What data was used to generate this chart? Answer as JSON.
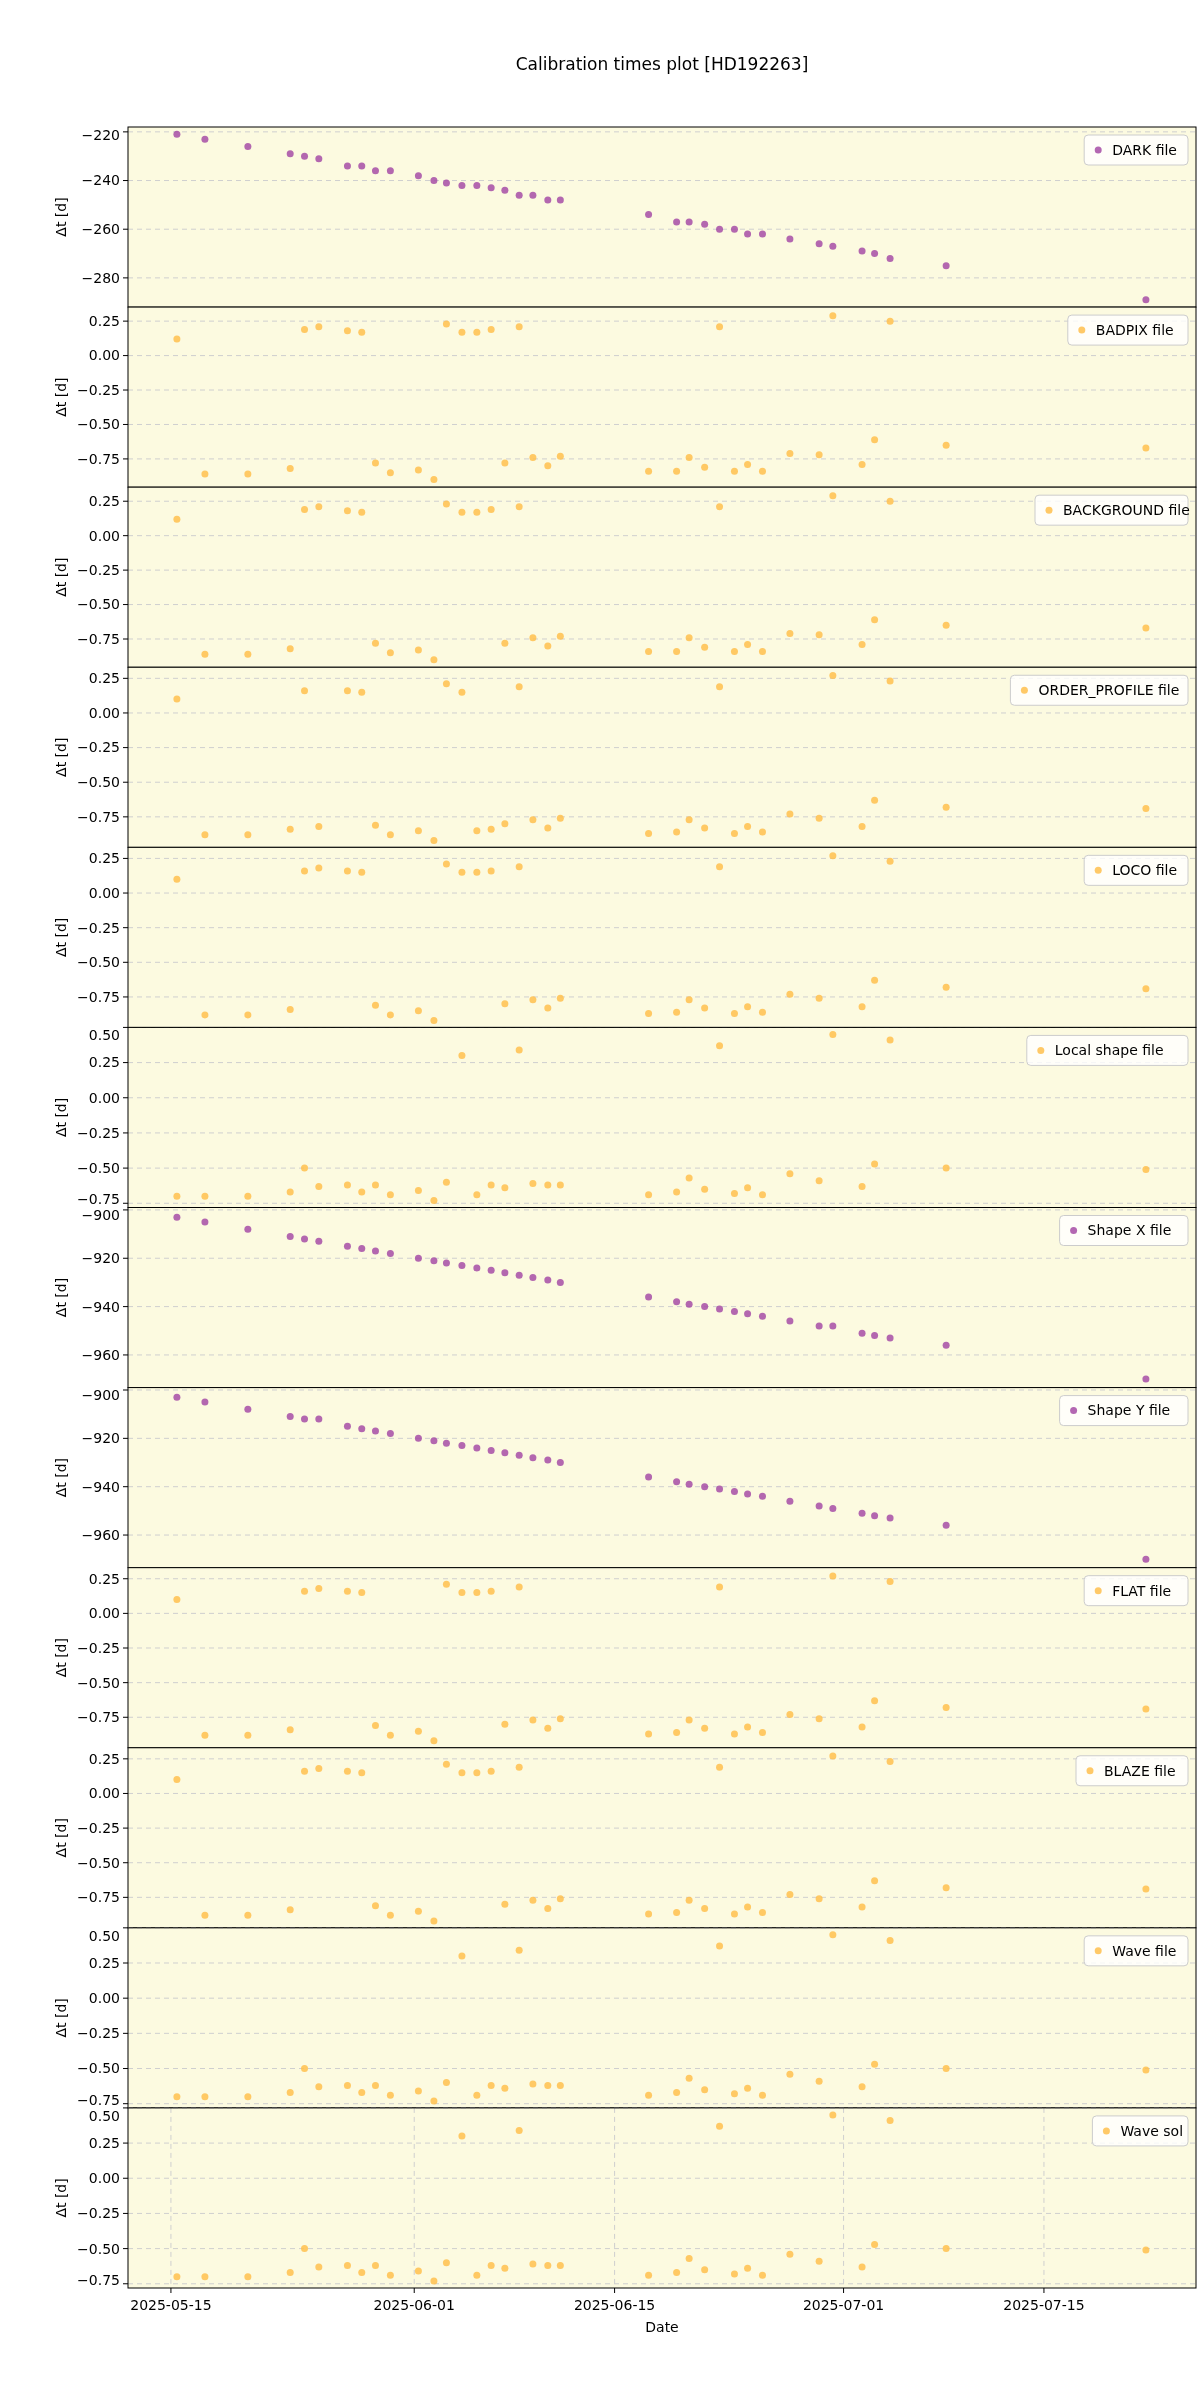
{
  "chart_data": [
    {
      "type": "scatter",
      "title": "Calibration times plot [HD192263]",
      "ylabel": "Δt [d]",
      "grid": true,
      "legend": "top right",
      "marker": "circle",
      "tick_labels": "y",
      "x": [
        "2025-05-15T10:00",
        "2025-05-17T09:00",
        "2025-05-20T09:00",
        "2025-05-23T08:00",
        "2025-05-24T08:00",
        "2025-05-25T08:00",
        "2025-05-27T08:00",
        "2025-05-28T08:00",
        "2025-05-29T07:00",
        "2025-05-30T08:00",
        "2025-06-01T07:00",
        "2025-06-02T09:00",
        "2025-06-03T06:00",
        "2025-06-04T08:00",
        "2025-06-05T09:00",
        "2025-06-06T09:00",
        "2025-06-07T08:00",
        "2025-06-08T08:00",
        "2025-06-09T07:00",
        "2025-06-10T08:00",
        "2025-06-11T05:00",
        "2025-06-17T09:00",
        "2025-06-19T08:00",
        "2025-06-20T05:00",
        "2025-06-21T07:00",
        "2025-06-22T08:00",
        "2025-06-23T09:00",
        "2025-06-24T07:00",
        "2025-06-25T08:00",
        "2025-06-27T06:00",
        "2025-06-29T07:00",
        "2025-06-30T06:00",
        "2025-07-02T07:00",
        "2025-07-03T04:00",
        "2025-07-04T06:00",
        "2025-07-08T04:00",
        "2025-07-22T03:00"
      ],
      "xlim": [
        "2025-05-12",
        "2025-07-25T15:00"
      ],
      "ylim": [
        -292,
        -218
      ],
      "yticks": [
        {
          "value": -280,
          "label": "−280"
        },
        {
          "value": -260,
          "label": "−260"
        },
        {
          "value": -240,
          "label": "−240"
        },
        {
          "value": -220,
          "label": "−220"
        }
      ],
      "series": [
        {
          "name": "DARK file",
          "color": "#a64ca6",
          "values": [
            -221,
            -223,
            -226,
            -229,
            -230,
            -231,
            -234,
            -234,
            -236,
            -236,
            -238,
            -240,
            -241,
            -242,
            -242,
            -243,
            -244,
            -246,
            -246,
            -248,
            -248,
            -254,
            -257,
            -257,
            -258,
            -260,
            -260,
            -262,
            -262,
            -264,
            -266,
            -267,
            -269,
            -270,
            -272,
            -275,
            -289
          ]
        }
      ]
    },
    {
      "type": "scatter",
      "ylabel": "Δt [d]",
      "grid": true,
      "legend": "top right",
      "marker": "circle",
      "tick_labels": "y",
      "x": [
        "2025-05-15T10:00",
        "2025-05-17T09:00",
        "2025-05-20T09:00",
        "2025-05-23T08:00",
        "2025-05-24T08:00",
        "2025-05-25T08:00",
        "2025-05-27T08:00",
        "2025-05-28T08:00",
        "2025-05-29T07:00",
        "2025-05-30T08:00",
        "2025-06-01T07:00",
        "2025-06-02T09:00",
        "2025-06-03T06:00",
        "2025-06-04T08:00",
        "2025-06-05T09:00",
        "2025-06-06T09:00",
        "2025-06-07T08:00",
        "2025-06-08T08:00",
        "2025-06-09T07:00",
        "2025-06-10T08:00",
        "2025-06-11T05:00",
        "2025-06-17T09:00",
        "2025-06-19T08:00",
        "2025-06-20T05:00",
        "2025-06-21T07:00",
        "2025-06-22T08:00",
        "2025-06-23T09:00",
        "2025-06-24T07:00",
        "2025-06-25T08:00",
        "2025-06-27T06:00",
        "2025-06-29T07:00",
        "2025-06-30T06:00",
        "2025-07-02T07:00",
        "2025-07-03T04:00",
        "2025-07-04T06:00",
        "2025-07-08T04:00",
        "2025-07-22T03:00"
      ],
      "xlim": [
        "2025-05-12",
        "2025-07-25T15:00"
      ],
      "ylim": [
        -0.955,
        0.352
      ],
      "yticks": [
        {
          "value": -0.75,
          "label": "−0.75"
        },
        {
          "value": -0.5,
          "label": "−0.50"
        },
        {
          "value": -0.25,
          "label": "−0.25"
        },
        {
          "value": 0,
          "label": "0.00"
        },
        {
          "value": 0.25,
          "label": "0.25"
        }
      ],
      "series": [
        {
          "name": "BADPIX file",
          "color": "#ffc04d",
          "values": [
            0.12,
            -0.86,
            -0.86,
            -0.82,
            0.19,
            0.21,
            0.18,
            0.17,
            -0.78,
            -0.85,
            -0.83,
            -0.9,
            0.23,
            0.17,
            0.17,
            0.19,
            -0.78,
            0.21,
            -0.74,
            -0.8,
            -0.73,
            -0.84,
            -0.84,
            -0.74,
            -0.81,
            0.21,
            -0.84,
            -0.79,
            -0.84,
            -0.71,
            -0.72,
            0.29,
            -0.79,
            -0.61,
            0.25,
            -0.65,
            -0.67
          ]
        }
      ]
    },
    {
      "type": "scatter",
      "ylabel": "Δt [d]",
      "grid": true,
      "legend": "top right",
      "marker": "circle",
      "tick_labels": "y",
      "x": [
        "2025-05-15T10:00",
        "2025-05-17T09:00",
        "2025-05-20T09:00",
        "2025-05-23T08:00",
        "2025-05-24T08:00",
        "2025-05-25T08:00",
        "2025-05-27T08:00",
        "2025-05-28T08:00",
        "2025-05-29T07:00",
        "2025-05-30T08:00",
        "2025-06-01T07:00",
        "2025-06-02T09:00",
        "2025-06-03T06:00",
        "2025-06-04T08:00",
        "2025-06-05T09:00",
        "2025-06-06T09:00",
        "2025-06-07T08:00",
        "2025-06-08T08:00",
        "2025-06-09T07:00",
        "2025-06-10T08:00",
        "2025-06-11T05:00",
        "2025-06-17T09:00",
        "2025-06-19T08:00",
        "2025-06-20T05:00",
        "2025-06-21T07:00",
        "2025-06-22T08:00",
        "2025-06-23T09:00",
        "2025-06-24T07:00",
        "2025-06-25T08:00",
        "2025-06-27T06:00",
        "2025-06-29T07:00",
        "2025-06-30T06:00",
        "2025-07-02T07:00",
        "2025-07-03T04:00",
        "2025-07-04T06:00",
        "2025-07-08T04:00",
        "2025-07-22T03:00"
      ],
      "xlim": [
        "2025-05-12",
        "2025-07-25T15:00"
      ],
      "ylim": [
        -0.955,
        0.352
      ],
      "yticks": [
        {
          "value": -0.75,
          "label": "−0.75"
        },
        {
          "value": -0.5,
          "label": "−0.50"
        },
        {
          "value": -0.25,
          "label": "−0.25"
        },
        {
          "value": 0,
          "label": "0.00"
        },
        {
          "value": 0.25,
          "label": "0.25"
        }
      ],
      "series": [
        {
          "name": "BACKGROUND file",
          "color": "#ffc04d",
          "values": [
            0.12,
            -0.86,
            -0.86,
            -0.82,
            0.19,
            0.21,
            0.18,
            0.17,
            -0.78,
            -0.85,
            -0.83,
            -0.9,
            0.23,
            0.17,
            0.17,
            0.19,
            -0.78,
            0.21,
            -0.74,
            -0.8,
            -0.73,
            -0.84,
            -0.84,
            -0.74,
            -0.81,
            0.21,
            -0.84,
            -0.79,
            -0.84,
            -0.71,
            -0.72,
            0.29,
            -0.79,
            -0.61,
            0.25,
            -0.65,
            -0.67
          ]
        }
      ]
    },
    {
      "type": "scatter",
      "ylabel": "Δt [d]",
      "grid": true,
      "legend": "top right",
      "marker": "circle",
      "tick_labels": "y",
      "x": [
        "2025-05-15T10:00",
        "2025-05-17T09:00",
        "2025-05-20T09:00",
        "2025-05-23T08:00",
        "2025-05-24T08:00",
        "2025-05-25T08:00",
        "2025-05-27T08:00",
        "2025-05-28T08:00",
        "2025-05-29T07:00",
        "2025-05-30T08:00",
        "2025-06-01T07:00",
        "2025-06-02T09:00",
        "2025-06-03T06:00",
        "2025-06-04T08:00",
        "2025-06-05T09:00",
        "2025-06-06T09:00",
        "2025-06-07T08:00",
        "2025-06-08T08:00",
        "2025-06-09T07:00",
        "2025-06-10T08:00",
        "2025-06-11T05:00",
        "2025-06-17T09:00",
        "2025-06-19T08:00",
        "2025-06-20T05:00",
        "2025-06-21T07:00",
        "2025-06-22T08:00",
        "2025-06-23T09:00",
        "2025-06-24T07:00",
        "2025-06-25T08:00",
        "2025-06-27T06:00",
        "2025-06-29T07:00",
        "2025-06-30T06:00",
        "2025-07-02T07:00",
        "2025-07-03T04:00",
        "2025-07-04T06:00",
        "2025-07-08T04:00",
        "2025-07-22T03:00"
      ],
      "xlim": [
        "2025-05-12",
        "2025-07-25T15:00"
      ],
      "ylim": [
        -0.97,
        0.33
      ],
      "yticks": [
        {
          "value": -0.75,
          "label": "−0.75"
        },
        {
          "value": -0.5,
          "label": "−0.50"
        },
        {
          "value": -0.25,
          "label": "−0.25"
        },
        {
          "value": 0,
          "label": "0.00"
        },
        {
          "value": 0.25,
          "label": "0.25"
        }
      ],
      "series": [
        {
          "name": "ORDER_PROFILE file",
          "color": "#ffc04d",
          "values": [
            0.1,
            -0.88,
            -0.88,
            -0.84,
            0.16,
            -0.82,
            0.16,
            0.15,
            -0.81,
            -0.88,
            -0.85,
            -0.92,
            0.21,
            0.15,
            -0.85,
            -0.84,
            -0.8,
            0.19,
            -0.77,
            -0.83,
            -0.76,
            -0.87,
            -0.86,
            -0.77,
            -0.83,
            0.19,
            -0.87,
            -0.82,
            -0.86,
            -0.73,
            -0.76,
            0.27,
            -0.82,
            -0.63,
            0.23,
            -0.68,
            -0.69
          ]
        }
      ]
    },
    {
      "type": "scatter",
      "ylabel": "Δt [d]",
      "grid": true,
      "legend": "top right",
      "marker": "circle",
      "tick_labels": "y",
      "x": [
        "2025-05-15T10:00",
        "2025-05-17T09:00",
        "2025-05-20T09:00",
        "2025-05-23T08:00",
        "2025-05-24T08:00",
        "2025-05-25T08:00",
        "2025-05-27T08:00",
        "2025-05-28T08:00",
        "2025-05-29T07:00",
        "2025-05-30T08:00",
        "2025-06-01T07:00",
        "2025-06-02T09:00",
        "2025-06-03T06:00",
        "2025-06-04T08:00",
        "2025-06-05T09:00",
        "2025-06-06T09:00",
        "2025-06-07T08:00",
        "2025-06-08T08:00",
        "2025-06-09T07:00",
        "2025-06-10T08:00",
        "2025-06-11T05:00",
        "2025-06-17T09:00",
        "2025-06-19T08:00",
        "2025-06-20T05:00",
        "2025-06-21T07:00",
        "2025-06-22T08:00",
        "2025-06-23T09:00",
        "2025-06-24T07:00",
        "2025-06-25T08:00",
        "2025-06-27T06:00",
        "2025-06-29T07:00",
        "2025-06-30T06:00",
        "2025-07-02T07:00",
        "2025-07-03T04:00",
        "2025-07-04T06:00",
        "2025-07-08T04:00",
        "2025-07-22T03:00"
      ],
      "xlim": [
        "2025-05-12",
        "2025-07-25T15:00"
      ],
      "ylim": [
        -0.97,
        0.33
      ],
      "yticks": [
        {
          "value": -0.75,
          "label": "−0.75"
        },
        {
          "value": -0.5,
          "label": "−0.50"
        },
        {
          "value": -0.25,
          "label": "−0.25"
        },
        {
          "value": 0,
          "label": "0.00"
        },
        {
          "value": 0.25,
          "label": "0.25"
        }
      ],
      "series": [
        {
          "name": "LOCO file",
          "color": "#ffc04d",
          "values": [
            0.1,
            -0.88,
            -0.88,
            -0.84,
            0.16,
            0.18,
            0.16,
            0.15,
            -0.81,
            -0.88,
            -0.85,
            -0.92,
            0.21,
            0.15,
            0.15,
            0.16,
            -0.8,
            0.19,
            -0.77,
            -0.83,
            -0.76,
            -0.87,
            -0.86,
            -0.77,
            -0.83,
            0.19,
            -0.87,
            -0.82,
            -0.86,
            -0.73,
            -0.76,
            0.27,
            -0.82,
            -0.63,
            0.23,
            -0.68,
            -0.69
          ]
        }
      ]
    },
    {
      "type": "scatter",
      "ylabel": "Δt [d]",
      "grid": true,
      "legend": "top right",
      "marker": "circle",
      "tick_labels": "y",
      "x": [
        "2025-05-15T10:00",
        "2025-05-17T09:00",
        "2025-05-20T09:00",
        "2025-05-23T08:00",
        "2025-05-24T08:00",
        "2025-05-25T08:00",
        "2025-05-27T08:00",
        "2025-05-28T08:00",
        "2025-05-29T07:00",
        "2025-05-30T08:00",
        "2025-06-01T07:00",
        "2025-06-02T09:00",
        "2025-06-03T06:00",
        "2025-06-04T08:00",
        "2025-06-05T09:00",
        "2025-06-06T09:00",
        "2025-06-07T08:00",
        "2025-06-08T08:00",
        "2025-06-09T07:00",
        "2025-06-10T08:00",
        "2025-06-11T05:00",
        "2025-06-17T09:00",
        "2025-06-19T08:00",
        "2025-06-20T05:00",
        "2025-06-21T07:00",
        "2025-06-22T08:00",
        "2025-06-23T09:00",
        "2025-06-24T07:00",
        "2025-06-25T08:00",
        "2025-06-27T06:00",
        "2025-06-29T07:00",
        "2025-06-30T06:00",
        "2025-07-02T07:00",
        "2025-07-03T04:00",
        "2025-07-04T06:00",
        "2025-07-08T04:00",
        "2025-07-22T03:00"
      ],
      "xlim": [
        "2025-05-12",
        "2025-07-25T15:00"
      ],
      "ylim": [
        -0.78,
        0.5
      ],
      "yticks": [
        {
          "value": -0.75,
          "label": "−0.75"
        },
        {
          "value": -0.5,
          "label": "−0.50"
        },
        {
          "value": -0.25,
          "label": "−0.25"
        },
        {
          "value": 0,
          "label": "0.00"
        },
        {
          "value": 0.25,
          "label": "0.25"
        },
        {
          "value": 0.5,
          "label": "0.50"
        }
      ],
      "series": [
        {
          "name": "Local shape file",
          "color": "#ffc04d",
          "values": [
            -0.7,
            -0.7,
            -0.7,
            -0.67,
            -0.5,
            -0.63,
            -0.62,
            -0.67,
            -0.62,
            -0.69,
            -0.66,
            -0.73,
            -0.6,
            0.3,
            -0.69,
            -0.62,
            -0.64,
            0.34,
            -0.61,
            -0.62,
            -0.62,
            -0.69,
            -0.67,
            -0.57,
            -0.65,
            0.37,
            -0.68,
            -0.64,
            -0.69,
            -0.54,
            -0.59,
            0.45,
            -0.63,
            -0.47,
            0.41,
            -0.5,
            -0.51
          ]
        }
      ]
    },
    {
      "type": "scatter",
      "ylabel": "Δt [d]",
      "grid": true,
      "legend": "top right",
      "marker": "circle",
      "tick_labels": "y",
      "x": [
        "2025-05-15T10:00",
        "2025-05-17T09:00",
        "2025-05-20T09:00",
        "2025-05-23T08:00",
        "2025-05-24T08:00",
        "2025-05-25T08:00",
        "2025-05-27T08:00",
        "2025-05-28T08:00",
        "2025-05-29T07:00",
        "2025-05-30T08:00",
        "2025-06-01T07:00",
        "2025-06-02T09:00",
        "2025-06-03T06:00",
        "2025-06-04T08:00",
        "2025-06-05T09:00",
        "2025-06-06T09:00",
        "2025-06-07T08:00",
        "2025-06-08T08:00",
        "2025-06-09T07:00",
        "2025-06-10T08:00",
        "2025-06-11T05:00",
        "2025-06-17T09:00",
        "2025-06-19T08:00",
        "2025-06-20T05:00",
        "2025-06-21T07:00",
        "2025-06-22T08:00",
        "2025-06-23T09:00",
        "2025-06-24T07:00",
        "2025-06-25T08:00",
        "2025-06-27T06:00",
        "2025-06-29T07:00",
        "2025-06-30T06:00",
        "2025-07-02T07:00",
        "2025-07-03T04:00",
        "2025-07-04T06:00",
        "2025-07-08T04:00",
        "2025-07-22T03:00"
      ],
      "xlim": [
        "2025-05-12",
        "2025-07-25T15:00"
      ],
      "ylim": [
        -973.5,
        -899
      ],
      "yticks": [
        {
          "value": -960,
          "label": "−960"
        },
        {
          "value": -940,
          "label": "−940"
        },
        {
          "value": -920,
          "label": "−920"
        },
        {
          "value": -900,
          "label": "−900"
        }
      ],
      "series": [
        {
          "name": "Shape X file",
          "color": "#a64ca6",
          "values": [
            -903,
            -905,
            -908,
            -911,
            -912,
            -913,
            -915,
            -916,
            -917,
            -918,
            -920,
            -921,
            -922,
            -923,
            -924,
            -925,
            -926,
            -927,
            -928,
            -929,
            -930,
            -936,
            -938,
            -939,
            -940,
            -941,
            -942,
            -943,
            -944,
            -946,
            -948,
            -948,
            -951,
            -952,
            -953,
            -956,
            -970
          ]
        }
      ]
    },
    {
      "type": "scatter",
      "ylabel": "Δt [d]",
      "grid": true,
      "legend": "top right",
      "marker": "circle",
      "tick_labels": "y",
      "x": [
        "2025-05-15T10:00",
        "2025-05-17T09:00",
        "2025-05-20T09:00",
        "2025-05-23T08:00",
        "2025-05-24T08:00",
        "2025-05-25T08:00",
        "2025-05-27T08:00",
        "2025-05-28T08:00",
        "2025-05-29T07:00",
        "2025-05-30T08:00",
        "2025-06-01T07:00",
        "2025-06-02T09:00",
        "2025-06-03T06:00",
        "2025-06-04T08:00",
        "2025-06-05T09:00",
        "2025-06-06T09:00",
        "2025-06-07T08:00",
        "2025-06-08T08:00",
        "2025-06-09T07:00",
        "2025-06-10T08:00",
        "2025-06-11T05:00",
        "2025-06-17T09:00",
        "2025-06-19T08:00",
        "2025-06-20T05:00",
        "2025-06-21T07:00",
        "2025-06-22T08:00",
        "2025-06-23T09:00",
        "2025-06-24T07:00",
        "2025-06-25T08:00",
        "2025-06-27T06:00",
        "2025-06-29T07:00",
        "2025-06-30T06:00",
        "2025-07-02T07:00",
        "2025-07-03T04:00",
        "2025-07-04T06:00",
        "2025-07-08T04:00",
        "2025-07-22T03:00"
      ],
      "xlim": [
        "2025-05-12",
        "2025-07-25T15:00"
      ],
      "ylim": [
        -973.5,
        -899
      ],
      "yticks": [
        {
          "value": -960,
          "label": "−960"
        },
        {
          "value": -940,
          "label": "−940"
        },
        {
          "value": -920,
          "label": "−920"
        },
        {
          "value": -900,
          "label": "−900"
        }
      ],
      "series": [
        {
          "name": "Shape Y file",
          "color": "#a64ca6",
          "values": [
            -903,
            -905,
            -908,
            -911,
            -912,
            -912,
            -915,
            -916,
            -917,
            -918,
            -920,
            -921,
            -922,
            -923,
            -924,
            -925,
            -926,
            -927,
            -928,
            -929,
            -930,
            -936,
            -938,
            -939,
            -940,
            -941,
            -942,
            -943,
            -944,
            -946,
            -948,
            -949,
            -951,
            -952,
            -953,
            -956,
            -970
          ]
        }
      ]
    },
    {
      "type": "scatter",
      "ylabel": "Δt [d]",
      "grid": true,
      "legend": "top right",
      "marker": "circle",
      "tick_labels": "y",
      "x": [
        "2025-05-15T10:00",
        "2025-05-17T09:00",
        "2025-05-20T09:00",
        "2025-05-23T08:00",
        "2025-05-24T08:00",
        "2025-05-25T08:00",
        "2025-05-27T08:00",
        "2025-05-28T08:00",
        "2025-05-29T07:00",
        "2025-05-30T08:00",
        "2025-06-01T07:00",
        "2025-06-02T09:00",
        "2025-06-03T06:00",
        "2025-06-04T08:00",
        "2025-06-05T09:00",
        "2025-06-06T09:00",
        "2025-06-07T08:00",
        "2025-06-08T08:00",
        "2025-06-09T07:00",
        "2025-06-10T08:00",
        "2025-06-11T05:00",
        "2025-06-17T09:00",
        "2025-06-19T08:00",
        "2025-06-20T05:00",
        "2025-06-21T07:00",
        "2025-06-22T08:00",
        "2025-06-23T09:00",
        "2025-06-24T07:00",
        "2025-06-25T08:00",
        "2025-06-27T06:00",
        "2025-06-29T07:00",
        "2025-06-30T06:00",
        "2025-07-02T07:00",
        "2025-07-03T04:00",
        "2025-07-04T06:00",
        "2025-07-08T04:00",
        "2025-07-22T03:00"
      ],
      "xlim": [
        "2025-05-12",
        "2025-07-25T15:00"
      ],
      "ylim": [
        -0.97,
        0.33
      ],
      "yticks": [
        {
          "value": -0.75,
          "label": "−0.75"
        },
        {
          "value": -0.5,
          "label": "−0.50"
        },
        {
          "value": -0.25,
          "label": "−0.25"
        },
        {
          "value": 0,
          "label": "0.00"
        },
        {
          "value": 0.25,
          "label": "0.25"
        }
      ],
      "series": [
        {
          "name": "FLAT file",
          "color": "#ffc04d",
          "values": [
            0.1,
            -0.88,
            -0.88,
            -0.84,
            0.16,
            0.18,
            0.16,
            0.15,
            -0.81,
            -0.88,
            -0.85,
            -0.92,
            0.21,
            0.15,
            0.15,
            0.16,
            -0.8,
            0.19,
            -0.77,
            -0.83,
            -0.76,
            -0.87,
            -0.86,
            -0.77,
            -0.83,
            0.19,
            -0.87,
            -0.82,
            -0.86,
            -0.73,
            -0.76,
            0.27,
            -0.82,
            -0.63,
            0.23,
            -0.68,
            -0.69
          ]
        }
      ]
    },
    {
      "type": "scatter",
      "ylabel": "Δt [d]",
      "grid": true,
      "legend": "top right",
      "marker": "circle",
      "tick_labels": "y",
      "x": [
        "2025-05-15T10:00",
        "2025-05-17T09:00",
        "2025-05-20T09:00",
        "2025-05-23T08:00",
        "2025-05-24T08:00",
        "2025-05-25T08:00",
        "2025-05-27T08:00",
        "2025-05-28T08:00",
        "2025-05-29T07:00",
        "2025-05-30T08:00",
        "2025-06-01T07:00",
        "2025-06-02T09:00",
        "2025-06-03T06:00",
        "2025-06-04T08:00",
        "2025-06-05T09:00",
        "2025-06-06T09:00",
        "2025-06-07T08:00",
        "2025-06-08T08:00",
        "2025-06-09T07:00",
        "2025-06-10T08:00",
        "2025-06-11T05:00",
        "2025-06-17T09:00",
        "2025-06-19T08:00",
        "2025-06-20T05:00",
        "2025-06-21T07:00",
        "2025-06-22T08:00",
        "2025-06-23T09:00",
        "2025-06-24T07:00",
        "2025-06-25T08:00",
        "2025-06-27T06:00",
        "2025-06-29T07:00",
        "2025-06-30T06:00",
        "2025-07-02T07:00",
        "2025-07-03T04:00",
        "2025-07-04T06:00",
        "2025-07-08T04:00",
        "2025-07-22T03:00"
      ],
      "xlim": [
        "2025-05-12",
        "2025-07-25T15:00"
      ],
      "ylim": [
        -0.97,
        0.33
      ],
      "yticks": [
        {
          "value": -0.75,
          "label": "−0.75"
        },
        {
          "value": -0.5,
          "label": "−0.50"
        },
        {
          "value": -0.25,
          "label": "−0.25"
        },
        {
          "value": 0,
          "label": "0.00"
        },
        {
          "value": 0.25,
          "label": "0.25"
        }
      ],
      "series": [
        {
          "name": "BLAZE file",
          "color": "#ffc04d",
          "values": [
            0.1,
            -0.88,
            -0.88,
            -0.84,
            0.16,
            0.18,
            0.16,
            0.15,
            -0.81,
            -0.88,
            -0.85,
            -0.92,
            0.21,
            0.15,
            0.15,
            0.16,
            -0.8,
            0.19,
            -0.77,
            -0.83,
            -0.76,
            -0.87,
            -0.86,
            -0.77,
            -0.83,
            0.19,
            -0.87,
            -0.82,
            -0.86,
            -0.73,
            -0.76,
            0.27,
            -0.82,
            -0.63,
            0.23,
            -0.68,
            -0.69
          ]
        }
      ]
    },
    {
      "type": "scatter",
      "ylabel": "Δt [d]",
      "grid": true,
      "legend": "top right",
      "marker": "circle",
      "tick_labels": "y",
      "x": [
        "2025-05-15T10:00",
        "2025-05-17T09:00",
        "2025-05-20T09:00",
        "2025-05-23T08:00",
        "2025-05-24T08:00",
        "2025-05-25T08:00",
        "2025-05-27T08:00",
        "2025-05-28T08:00",
        "2025-05-29T07:00",
        "2025-05-30T08:00",
        "2025-06-01T07:00",
        "2025-06-02T09:00",
        "2025-06-03T06:00",
        "2025-06-04T08:00",
        "2025-06-05T09:00",
        "2025-06-06T09:00",
        "2025-06-07T08:00",
        "2025-06-08T08:00",
        "2025-06-09T07:00",
        "2025-06-10T08:00",
        "2025-06-11T05:00",
        "2025-06-17T09:00",
        "2025-06-19T08:00",
        "2025-06-20T05:00",
        "2025-06-21T07:00",
        "2025-06-22T08:00",
        "2025-06-23T09:00",
        "2025-06-24T07:00",
        "2025-06-25T08:00",
        "2025-06-27T06:00",
        "2025-06-29T07:00",
        "2025-06-30T06:00",
        "2025-07-02T07:00",
        "2025-07-03T04:00",
        "2025-07-04T06:00",
        "2025-07-08T04:00",
        "2025-07-22T03:00"
      ],
      "xlim": [
        "2025-05-12",
        "2025-07-25T15:00"
      ],
      "ylim": [
        -0.78,
        0.5
      ],
      "yticks": [
        {
          "value": -0.75,
          "label": "−0.75"
        },
        {
          "value": -0.5,
          "label": "−0.50"
        },
        {
          "value": -0.25,
          "label": "−0.25"
        },
        {
          "value": 0,
          "label": "0.00"
        },
        {
          "value": 0.25,
          "label": "0.25"
        },
        {
          "value": 0.5,
          "label": "0.50"
        }
      ],
      "series": [
        {
          "name": "Wave file",
          "color": "#ffc04d",
          "values": [
            -0.7,
            -0.7,
            -0.7,
            -0.67,
            -0.5,
            -0.63,
            -0.62,
            -0.67,
            -0.62,
            -0.69,
            -0.66,
            -0.73,
            -0.6,
            0.3,
            -0.69,
            -0.62,
            -0.64,
            0.34,
            -0.61,
            -0.62,
            -0.62,
            -0.69,
            -0.67,
            -0.57,
            -0.65,
            0.37,
            -0.68,
            -0.64,
            -0.69,
            -0.54,
            -0.59,
            0.45,
            -0.63,
            -0.47,
            0.41,
            -0.5,
            -0.51
          ]
        }
      ]
    },
    {
      "type": "scatter",
      "ylabel": "Δt [d]",
      "xlabel": "Date",
      "grid": true,
      "legend": "top right",
      "marker": "circle",
      "x": [
        "2025-05-15T10:00",
        "2025-05-17T09:00",
        "2025-05-20T09:00",
        "2025-05-23T08:00",
        "2025-05-24T08:00",
        "2025-05-25T08:00",
        "2025-05-27T08:00",
        "2025-05-28T08:00",
        "2025-05-29T07:00",
        "2025-05-30T08:00",
        "2025-06-01T07:00",
        "2025-06-02T09:00",
        "2025-06-03T06:00",
        "2025-06-04T08:00",
        "2025-06-05T09:00",
        "2025-06-06T09:00",
        "2025-06-07T08:00",
        "2025-06-08T08:00",
        "2025-06-09T07:00",
        "2025-06-10T08:00",
        "2025-06-11T05:00",
        "2025-06-17T09:00",
        "2025-06-19T08:00",
        "2025-06-20T05:00",
        "2025-06-21T07:00",
        "2025-06-22T08:00",
        "2025-06-23T09:00",
        "2025-06-24T07:00",
        "2025-06-25T08:00",
        "2025-06-27T06:00",
        "2025-06-29T07:00",
        "2025-06-30T06:00",
        "2025-07-02T07:00",
        "2025-07-03T04:00",
        "2025-07-04T06:00",
        "2025-07-08T04:00",
        "2025-07-22T03:00"
      ],
      "xlim": [
        "2025-05-12",
        "2025-07-25T15:00"
      ],
      "ylim": [
        -0.78,
        0.5
      ],
      "xticks": [
        "2025-05-15",
        "2025-06-01",
        "2025-06-15",
        "2025-07-01",
        "2025-07-15"
      ],
      "yticks": [
        {
          "value": -0.75,
          "label": "−0.75"
        },
        {
          "value": -0.5,
          "label": "−0.50"
        },
        {
          "value": -0.25,
          "label": "−0.25"
        },
        {
          "value": 0,
          "label": "0.00"
        },
        {
          "value": 0.25,
          "label": "0.25"
        },
        {
          "value": 0.5,
          "label": "0.50"
        }
      ],
      "series": [
        {
          "name": "Wave sol",
          "color": "#ffc04d",
          "values": [
            -0.7,
            -0.7,
            -0.7,
            -0.67,
            -0.5,
            -0.63,
            -0.62,
            -0.67,
            -0.62,
            -0.69,
            -0.66,
            -0.73,
            -0.6,
            0.3,
            -0.69,
            -0.62,
            -0.64,
            0.34,
            -0.61,
            -0.62,
            -0.62,
            -0.69,
            -0.67,
            -0.57,
            -0.65,
            0.37,
            -0.68,
            -0.64,
            -0.69,
            -0.54,
            -0.59,
            0.45,
            -0.63,
            -0.47,
            0.41,
            -0.5,
            -0.51
          ]
        }
      ]
    }
  ]
}
